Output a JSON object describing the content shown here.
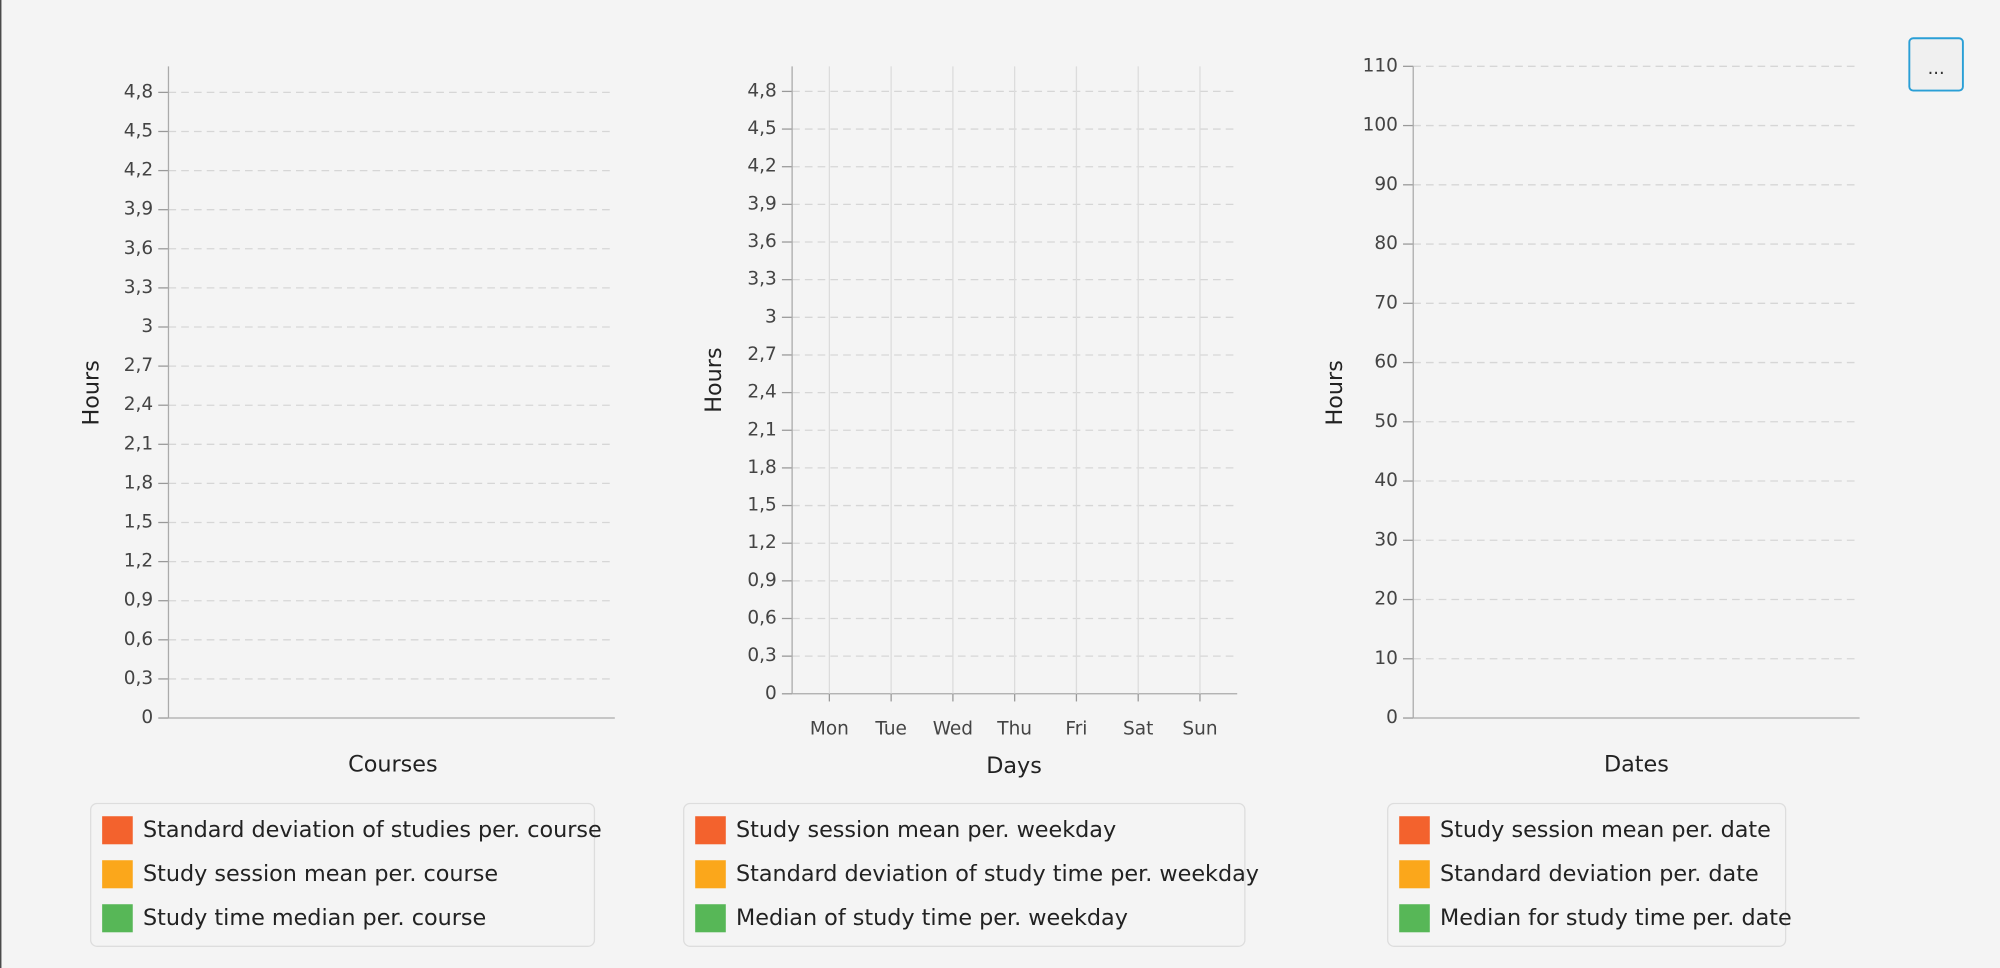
{
  "chart_data": [
    {
      "type": "bar",
      "x_label": "Courses",
      "y_label": "Hours",
      "categories": [],
      "series": [
        {
          "name": "Standard deviation of studies per. course",
          "color": "#f3622d",
          "values": []
        },
        {
          "name": "Study session mean per. course",
          "color": "#fba71b",
          "values": []
        },
        {
          "name": "Study time median per. course",
          "color": "#57b757",
          "values": []
        }
      ],
      "ylim": [
        0,
        5
      ],
      "yticks": [
        0,
        {
          "value": 0.3,
          "label": "0,3"
        },
        {
          "value": 0.6,
          "label": "0,6"
        },
        {
          "value": 0.9,
          "label": "0,9"
        },
        {
          "value": 1.2,
          "label": "1,2"
        },
        {
          "value": 1.5,
          "label": "1,5"
        },
        {
          "value": 1.8,
          "label": "1,8"
        },
        {
          "value": 2.1,
          "label": "2,1"
        },
        {
          "value": 2.4,
          "label": "2,4"
        },
        {
          "value": 2.7,
          "label": "2,7"
        },
        3,
        {
          "value": 3.3,
          "label": "3,3"
        },
        {
          "value": 3.6,
          "label": "3,6"
        },
        {
          "value": 3.9,
          "label": "3,9"
        },
        {
          "value": 4.2,
          "label": "4,2"
        },
        {
          "value": 4.5,
          "label": "4,5"
        },
        {
          "value": 4.8,
          "label": "4,8"
        }
      ],
      "grid": true,
      "legend": "bottom"
    },
    {
      "type": "bar",
      "x_label": "Days",
      "y_label": "Hours",
      "categories": [
        "Mon",
        "Tue",
        "Wed",
        "Thu",
        "Fri",
        "Sat",
        "Sun"
      ],
      "series": [
        {
          "name": "Study session mean per. weekday",
          "color": "#f3622d",
          "values": [
            null,
            null,
            null,
            null,
            null,
            null,
            null
          ]
        },
        {
          "name": "Standard deviation of study time per. weekday",
          "color": "#fba71b",
          "values": [
            null,
            null,
            null,
            null,
            null,
            null,
            null
          ]
        },
        {
          "name": "Median of study time per. weekday",
          "color": "#57b757",
          "values": [
            null,
            null,
            null,
            null,
            null,
            null,
            null
          ]
        }
      ],
      "ylim": [
        0,
        5
      ],
      "yticks": [
        0,
        {
          "value": 0.3,
          "label": "0,3"
        },
        {
          "value": 0.6,
          "label": "0,6"
        },
        {
          "value": 0.9,
          "label": "0,9"
        },
        {
          "value": 1.2,
          "label": "1,2"
        },
        {
          "value": 1.5,
          "label": "1,5"
        },
        {
          "value": 1.8,
          "label": "1,8"
        },
        {
          "value": 2.1,
          "label": "2,1"
        },
        {
          "value": 2.4,
          "label": "2,4"
        },
        {
          "value": 2.7,
          "label": "2,7"
        },
        3,
        {
          "value": 3.3,
          "label": "3,3"
        },
        {
          "value": 3.6,
          "label": "3,6"
        },
        {
          "value": 3.9,
          "label": "3,9"
        },
        {
          "value": 4.2,
          "label": "4,2"
        },
        {
          "value": 4.5,
          "label": "4,5"
        },
        {
          "value": 4.8,
          "label": "4,8"
        }
      ],
      "grid": true,
      "legend": "bottom"
    },
    {
      "type": "bar",
      "x_label": "Dates",
      "y_label": "Hours",
      "categories": [],
      "series": [
        {
          "name": "Study session mean per. date",
          "color": "#f3622d",
          "values": []
        },
        {
          "name": "Standard deviation per. date",
          "color": "#fba71b",
          "values": []
        },
        {
          "name": "Median for study time per. date",
          "color": "#57b757",
          "values": []
        }
      ],
      "ylim": [
        0,
        110
      ],
      "yticks": [
        0,
        10,
        20,
        30,
        40,
        50,
        60,
        70,
        80,
        90,
        100,
        110
      ],
      "grid": true,
      "legend": "bottom"
    }
  ],
  "button": "..."
}
